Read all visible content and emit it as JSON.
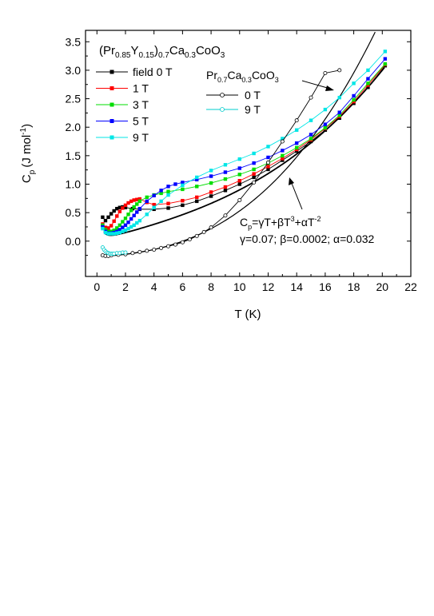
{
  "chart_data": {
    "type": "scatter",
    "xlabel": "T (K)",
    "ylabel": {
      "main": "C",
      "sub": "p",
      "units": "(J mol",
      "sup": "-1",
      "close": ")"
    },
    "xlim": [
      -0.8,
      22
    ],
    "ylim": [
      -0.62,
      3.7
    ],
    "xticks": [
      0,
      2,
      4,
      6,
      8,
      10,
      12,
      14,
      16,
      18,
      20,
      22
    ],
    "yticks": [
      0.0,
      0.5,
      1.0,
      1.5,
      2.0,
      2.5,
      3.0,
      3.5
    ],
    "ytick_labels": [
      "0.0",
      "0.5",
      "1.0",
      "1.5",
      "2.0",
      "2.5",
      "3.0",
      "3.5"
    ],
    "grid": false,
    "legend1": {
      "title_parts": [
        "(Pr",
        "0.85",
        "Y",
        "0.15",
        ")",
        "0.7",
        "Ca",
        "0.3",
        "CoO",
        "3"
      ],
      "placement": "top-left"
    },
    "legend2": {
      "title_parts": [
        "Pr",
        "0.7",
        "Ca",
        "0.3",
        "CoO",
        "3"
      ],
      "placement": "top-center"
    },
    "annotation": {
      "formula_parts": [
        "C",
        "p",
        "=γT+βT",
        "3",
        "+αT",
        "-2"
      ],
      "params": "γ=0.07; β=0.0002; α=0.032"
    },
    "series": [
      {
        "name": "field 0 T",
        "group": "PrY",
        "color": "#000000",
        "marker": "square-filled",
        "x": [
          0.4,
          0.6,
          0.8,
          1.0,
          1.2,
          1.4,
          1.6,
          1.8,
          2.0,
          2.5,
          3.0,
          4.0,
          5.0,
          6.0,
          7.0,
          8.0,
          9.0,
          10.0,
          11.0,
          12.0,
          13.0,
          14.0,
          15.0,
          16.0,
          17.0,
          18.0,
          19.0,
          20.2
        ],
        "y": [
          0.42,
          0.36,
          0.42,
          0.48,
          0.53,
          0.57,
          0.59,
          0.6,
          0.59,
          0.57,
          0.56,
          0.56,
          0.58,
          0.63,
          0.7,
          0.79,
          0.89,
          1.0,
          1.12,
          1.26,
          1.42,
          1.58,
          1.75,
          1.95,
          2.16,
          2.42,
          2.7,
          3.08
        ]
      },
      {
        "name": "1 T",
        "group": "PrY",
        "color": "#ff0000",
        "marker": "square-filled",
        "x": [
          0.4,
          0.6,
          0.8,
          1.0,
          1.2,
          1.4,
          1.6,
          1.8,
          2.0,
          2.2,
          2.4,
          2.6,
          2.8,
          3.0,
          3.5,
          4.0,
          5.0,
          6.0,
          7.0,
          8.0,
          9.0,
          10.0,
          11.0,
          12.0,
          13.0,
          14.0,
          15.0,
          16.0,
          17.0,
          18.0,
          19.0,
          20.2
        ],
        "y": [
          0.3,
          0.24,
          0.23,
          0.27,
          0.35,
          0.44,
          0.52,
          0.58,
          0.63,
          0.67,
          0.7,
          0.72,
          0.73,
          0.74,
          0.68,
          0.64,
          0.66,
          0.71,
          0.77,
          0.86,
          0.95,
          1.06,
          1.18,
          1.31,
          1.45,
          1.61,
          1.78,
          1.98,
          2.19,
          2.45,
          2.74,
          3.1
        ]
      },
      {
        "name": "3 T",
        "group": "PrY",
        "color": "#00dd00",
        "marker": "square-filled",
        "x": [
          0.4,
          0.6,
          0.8,
          1.0,
          1.2,
          1.4,
          1.6,
          1.8,
          2.0,
          2.2,
          2.4,
          2.6,
          2.8,
          3.0,
          3.5,
          4.0,
          4.5,
          5.0,
          6.0,
          7.0,
          8.0,
          9.0,
          10.0,
          11.0,
          12.0,
          13.0,
          14.0,
          15.0,
          16.0,
          17.0,
          18.0,
          19.0,
          20.2
        ],
        "y": [
          0.28,
          0.2,
          0.17,
          0.17,
          0.19,
          0.23,
          0.28,
          0.34,
          0.4,
          0.47,
          0.54,
          0.6,
          0.65,
          0.7,
          0.77,
          0.81,
          0.84,
          0.87,
          0.91,
          0.96,
          1.02,
          1.09,
          1.17,
          1.26,
          1.37,
          1.5,
          1.64,
          1.8,
          1.99,
          2.21,
          2.48,
          2.77,
          3.11
        ]
      },
      {
        "name": "5 T",
        "group": "PrY",
        "color": "#0000ff",
        "marker": "square-filled",
        "x": [
          0.4,
          0.6,
          0.8,
          1.0,
          1.2,
          1.4,
          1.6,
          1.8,
          2.0,
          2.2,
          2.4,
          2.6,
          2.8,
          3.0,
          3.5,
          4.0,
          4.5,
          5.0,
          5.5,
          6.0,
          7.0,
          8.0,
          9.0,
          10.0,
          11.0,
          12.0,
          13.0,
          14.0,
          15.0,
          16.0,
          17.0,
          18.0,
          19.0,
          20.2
        ],
        "y": [
          0.25,
          0.17,
          0.14,
          0.14,
          0.15,
          0.17,
          0.2,
          0.24,
          0.28,
          0.33,
          0.39,
          0.45,
          0.51,
          0.57,
          0.7,
          0.8,
          0.89,
          0.96,
          1.0,
          1.03,
          1.08,
          1.14,
          1.21,
          1.28,
          1.37,
          1.47,
          1.59,
          1.72,
          1.87,
          2.05,
          2.26,
          2.55,
          2.85,
          3.2
        ]
      },
      {
        "name": "9 T",
        "group": "PrY",
        "color": "#00e6e6",
        "marker": "square-filled",
        "x": [
          0.4,
          0.6,
          0.8,
          1.0,
          1.2,
          1.4,
          1.6,
          1.8,
          2.0,
          2.2,
          2.4,
          2.6,
          2.8,
          3.0,
          3.5,
          4.0,
          4.5,
          5.0,
          6.0,
          7.0,
          8.0,
          9.0,
          10.0,
          11.0,
          12.0,
          13.0,
          14.0,
          15.0,
          16.0,
          17.0,
          18.0,
          19.0,
          20.2
        ],
        "y": [
          0.22,
          0.15,
          0.13,
          0.13,
          0.13,
          0.14,
          0.15,
          0.17,
          0.19,
          0.22,
          0.25,
          0.28,
          0.32,
          0.36,
          0.47,
          0.59,
          0.7,
          0.81,
          0.98,
          1.12,
          1.24,
          1.34,
          1.44,
          1.54,
          1.66,
          1.8,
          1.95,
          2.12,
          2.31,
          2.52,
          2.77,
          3.0,
          3.33
        ]
      },
      {
        "name": "0 T",
        "group": "Pr",
        "color": "#000000",
        "marker": "circle-open",
        "x": [
          0.4,
          0.6,
          0.8,
          1.0,
          1.5,
          2.0,
          2.5,
          3.0,
          3.5,
          4.0,
          4.5,
          5.0,
          5.5,
          6.0,
          6.5,
          7.0,
          7.5,
          8.0,
          9.0,
          10.0,
          11.0,
          12.0,
          13.0,
          14.0,
          15.0,
          16.0,
          17.0
        ],
        "y": [
          -0.25,
          -0.26,
          -0.26,
          -0.25,
          -0.24,
          -0.23,
          -0.21,
          -0.19,
          -0.17,
          -0.15,
          -0.12,
          -0.09,
          -0.06,
          -0.02,
          0.03,
          0.09,
          0.16,
          0.24,
          0.45,
          0.72,
          1.03,
          1.38,
          1.75,
          2.12,
          2.52,
          2.95,
          3.0
        ]
      },
      {
        "name": "9 T",
        "group": "Pr",
        "color": "#00cccc",
        "marker": "circle-open",
        "x": [
          0.4,
          0.5,
          0.6,
          0.7,
          0.8,
          0.9,
          1.0,
          1.1,
          1.2,
          1.4,
          1.6,
          1.8,
          2.0
        ],
        "y": [
          -0.11,
          -0.15,
          -0.18,
          -0.2,
          -0.21,
          -0.22,
          -0.22,
          -0.22,
          -0.22,
          -0.21,
          -0.21,
          -0.2,
          -0.2
        ]
      }
    ],
    "fit_curve": {
      "gamma": 0.07,
      "beta": 0.0002,
      "alpha": 0.032,
      "color": "#000000"
    }
  }
}
